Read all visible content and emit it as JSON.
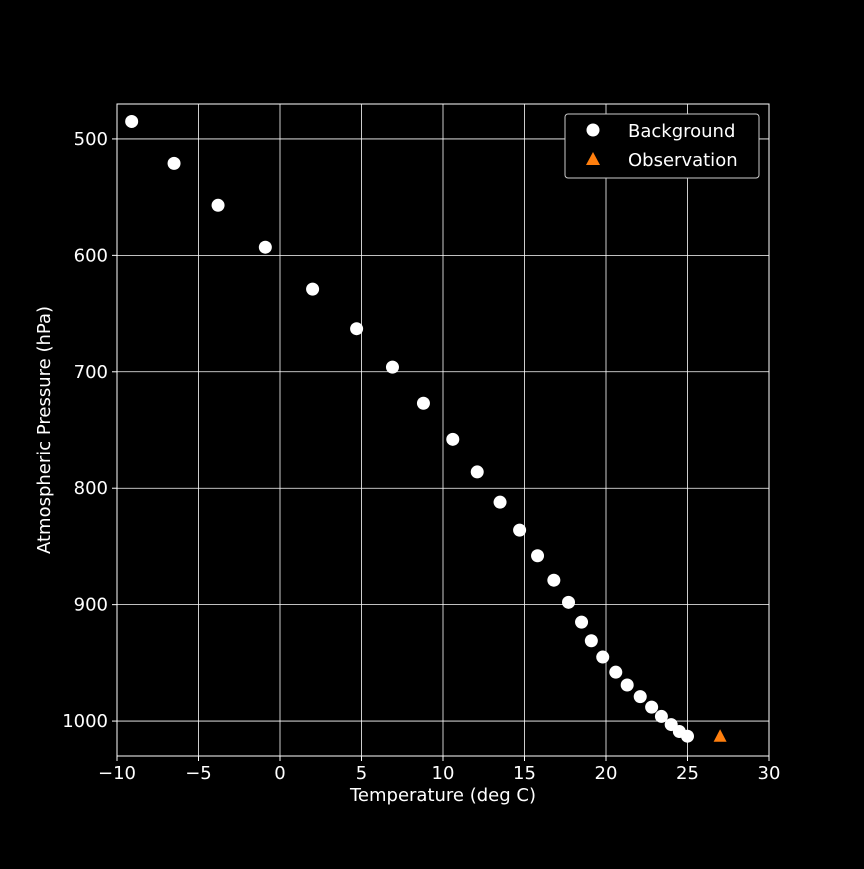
{
  "chart_data": {
    "type": "scatter",
    "title": "",
    "xlabel": "Temperature (deg C)",
    "ylabel": "Atmospheric Pressure (hPa)",
    "xlim": [
      -10,
      30
    ],
    "ylim": [
      1030,
      470
    ],
    "y_inverted": true,
    "x_ticks": [
      -10,
      -5,
      0,
      5,
      10,
      15,
      20,
      25,
      30
    ],
    "x_tick_labels": [
      "−10",
      "−5",
      "0",
      "5",
      "10",
      "15",
      "20",
      "25",
      "30"
    ],
    "y_ticks": [
      500,
      600,
      700,
      800,
      900,
      1000
    ],
    "y_tick_labels": [
      "500",
      "600",
      "700",
      "800",
      "900",
      "1000"
    ],
    "grid": true,
    "legend_position": "top-right",
    "background": "#000000",
    "series": [
      {
        "name": "Background",
        "marker": "circle",
        "color": "#ffffff",
        "points": [
          [
            -9.1,
            485
          ],
          [
            -6.5,
            521
          ],
          [
            -3.8,
            557
          ],
          [
            -0.9,
            593
          ],
          [
            2.0,
            629
          ],
          [
            4.7,
            663
          ],
          [
            6.9,
            696
          ],
          [
            8.8,
            727
          ],
          [
            10.6,
            758
          ],
          [
            12.1,
            786
          ],
          [
            13.5,
            812
          ],
          [
            14.7,
            836
          ],
          [
            15.8,
            858
          ],
          [
            16.8,
            879
          ],
          [
            17.7,
            898
          ],
          [
            18.5,
            915
          ],
          [
            19.1,
            931
          ],
          [
            19.8,
            945
          ],
          [
            20.6,
            958
          ],
          [
            21.3,
            969
          ],
          [
            22.1,
            979
          ],
          [
            22.8,
            988
          ],
          [
            23.4,
            996
          ],
          [
            24.0,
            1003
          ],
          [
            24.5,
            1009
          ],
          [
            25.0,
            1013
          ]
        ]
      },
      {
        "name": "Observation",
        "marker": "triangle",
        "color": "#ff7f0e",
        "points": [
          [
            27.0,
            1013
          ]
        ]
      }
    ]
  }
}
